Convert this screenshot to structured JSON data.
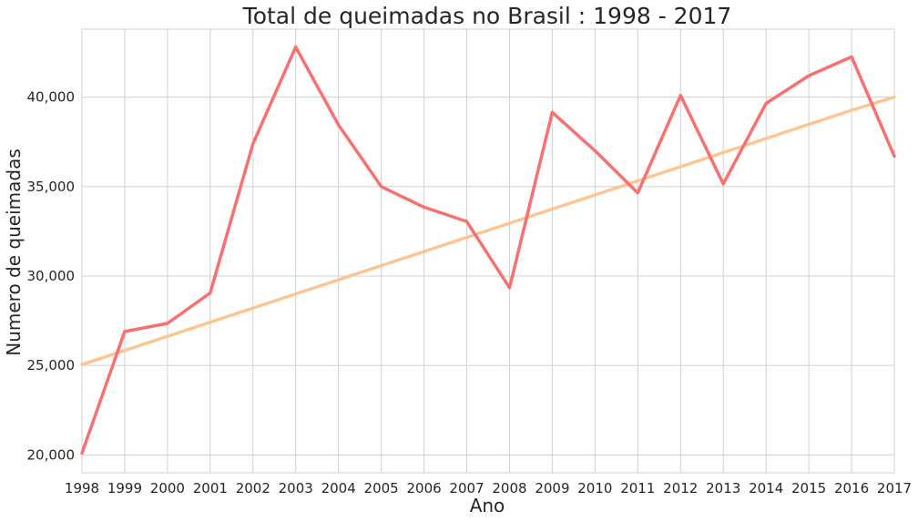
{
  "chart_data": {
    "type": "line",
    "title": "Total de queimadas no Brasil : 1998 - 2017",
    "xlabel": "Ano",
    "ylabel": "Numero de queimadas",
    "x": [
      1998,
      1999,
      2000,
      2001,
      2002,
      2003,
      2004,
      2005,
      2006,
      2007,
      2008,
      2009,
      2010,
      2011,
      2012,
      2013,
      2014,
      2015,
      2016,
      2017
    ],
    "x_tick_labels": [
      "1998",
      "1999",
      "2000",
      "2001",
      "2002",
      "2003",
      "2004",
      "2005",
      "2006",
      "2007",
      "2008",
      "2009",
      "2010",
      "2011",
      "2012",
      "2013",
      "2014",
      "2015",
      "2016",
      "2017"
    ],
    "y_ticks": [
      20000,
      25000,
      30000,
      35000,
      40000
    ],
    "y_tick_labels": [
      "20,000",
      "25,000",
      "30,000",
      "35,000",
      "40,000"
    ],
    "xlim": [
      1998,
      2017
    ],
    "ylim": [
      19000,
      43800
    ],
    "grid": true,
    "series": [
      {
        "color": "#f87171",
        "values": [
          20100,
          26900,
          27350,
          29050,
          37400,
          42800,
          38450,
          35000,
          33850,
          33050,
          29350,
          39150,
          37000,
          34650,
          40100,
          35150,
          39650,
          41200,
          42250,
          36700
        ]
      },
      {
        "color": "#fdc494",
        "values": [
          25050,
          25840,
          26630,
          27420,
          28210,
          29000,
          29790,
          30580,
          31370,
          32160,
          32950,
          33740,
          34530,
          35320,
          36110,
          36900,
          37690,
          38480,
          39270,
          40000
        ]
      }
    ]
  }
}
